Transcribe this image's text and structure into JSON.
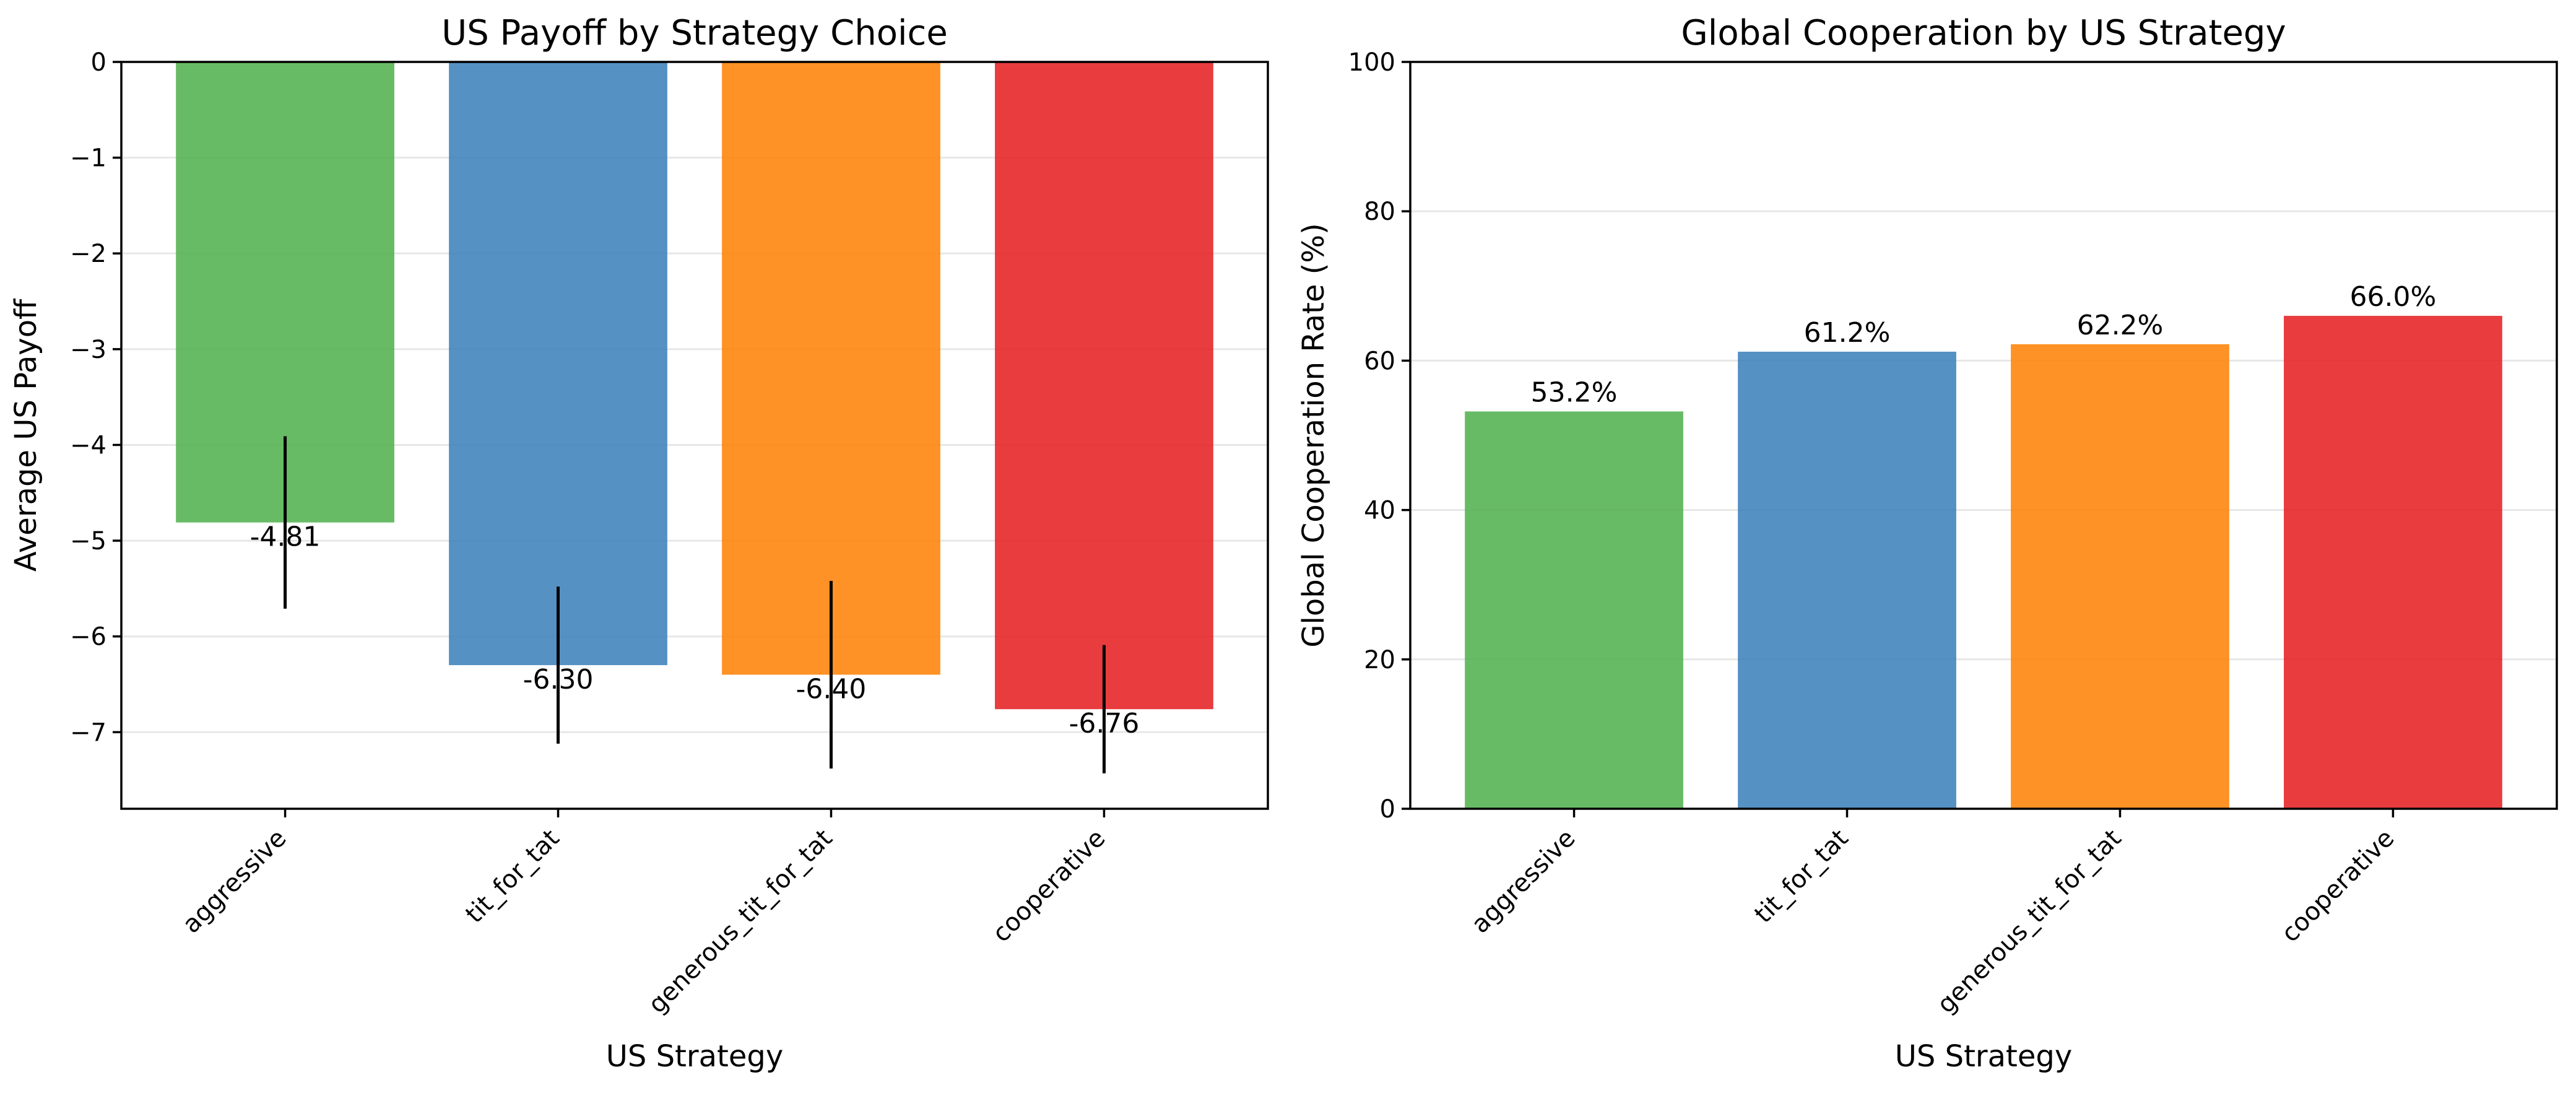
{
  "colors": {
    "green": "#4daf4a",
    "blue": "#377eb8",
    "orange": "#ff7f00",
    "red": "#e41a1c",
    "bar_opacity": 0.85
  },
  "chart_data": [
    {
      "type": "bar",
      "title": "US Payoff by Strategy Choice",
      "xlabel": "US Strategy",
      "ylabel": "Average US Payoff",
      "categories": [
        "aggressive",
        "tit_for_tat",
        "generous_tit_for_tat",
        "cooperative"
      ],
      "values": [
        -4.81,
        -6.3,
        -6.4,
        -6.76
      ],
      "error": [
        0.9,
        0.82,
        0.98,
        0.67
      ],
      "value_labels": [
        "-4.81",
        "-6.30",
        "-6.40",
        "-6.76"
      ],
      "bar_colors": [
        "green",
        "blue",
        "orange",
        "red"
      ],
      "ylim": [
        -7.8,
        0
      ],
      "yticks": [
        0,
        -1,
        -2,
        -3,
        -4,
        -5,
        -6,
        -7
      ],
      "ytick_labels": [
        "0",
        "−1",
        "−2",
        "−3",
        "−4",
        "−5",
        "−6",
        "−7"
      ],
      "grid": "y"
    },
    {
      "type": "bar",
      "title": "Global Cooperation by US Strategy",
      "xlabel": "US Strategy",
      "ylabel": "Global Cooperation Rate (%)",
      "categories": [
        "aggressive",
        "tit_for_tat",
        "generous_tit_for_tat",
        "cooperative"
      ],
      "values": [
        53.2,
        61.2,
        62.2,
        66.0
      ],
      "value_labels": [
        "53.2%",
        "61.2%",
        "62.2%",
        "66.0%"
      ],
      "bar_colors": [
        "green",
        "blue",
        "orange",
        "red"
      ],
      "ylim": [
        0,
        100
      ],
      "yticks": [
        0,
        20,
        40,
        60,
        80,
        100
      ],
      "ytick_labels": [
        "0",
        "20",
        "40",
        "60",
        "80",
        "100"
      ],
      "grid": "y"
    }
  ]
}
